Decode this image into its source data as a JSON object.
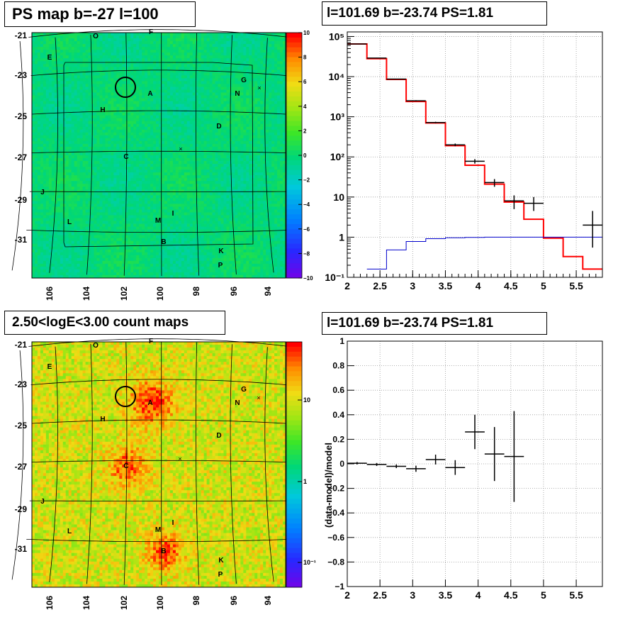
{
  "chart_data": [
    {
      "id": "ps_map",
      "type": "heatmap",
      "title": "PS map b=-27 l=100",
      "x_ticks": [
        "106",
        "104",
        "102",
        "100",
        "98",
        "96",
        "94"
      ],
      "y_ticks": [
        "-21",
        "-23",
        "-25",
        "-27",
        "-29",
        "-31"
      ],
      "colorbar_ticks": [
        "10",
        "8",
        "6",
        "4",
        "2",
        "0",
        "−2",
        "−4",
        "−6",
        "−8",
        "−10"
      ],
      "colorbar_range": [
        -10,
        10
      ],
      "source_labels": [
        "O",
        "F",
        "E",
        "G",
        "A",
        "N",
        "H",
        "D",
        "C",
        "J",
        "I",
        "L",
        "M",
        "B",
        "K",
        "P"
      ]
    },
    {
      "id": "spectrum",
      "type": "line",
      "title": "l=101.69 b=-23.74 PS=1.81",
      "y_scale": "log",
      "xlim": [
        2,
        5.9
      ],
      "ylim": [
        0.1,
        130000
      ],
      "x_ticks": [
        "2",
        "2.5",
        "3",
        "3.5",
        "4",
        "4.5",
        "5",
        "5.5"
      ],
      "y_ticks": [
        "10⁵",
        "10⁴",
        "10³",
        "10²",
        "10",
        "1",
        "10⁻¹"
      ],
      "series": [
        {
          "style": "step",
          "color": "#ff0000",
          "edges": [
            2,
            2.3,
            2.6,
            2.9,
            3.2,
            3.5,
            3.8,
            4.1,
            4.4,
            4.7,
            5.0,
            5.3,
            5.6,
            5.9
          ],
          "values": [
            65000,
            28000,
            8500,
            2400,
            700,
            190,
            62,
            21,
            7.5,
            2.8,
            0.95,
            0.33,
            0.16
          ]
        },
        {
          "style": "step",
          "color": "#0000cc",
          "edges": [
            2.3,
            2.6,
            2.9,
            3.2,
            3.5,
            3.8,
            4.1,
            4.4,
            4.7,
            5.0,
            5.3,
            5.6,
            5.9
          ],
          "values": [
            0.16,
            0.48,
            0.78,
            0.92,
            0.97,
            0.99,
            1,
            1,
            1,
            1,
            1,
            1
          ]
        },
        {
          "style": "errorbars",
          "color": "#000000",
          "points": [
            {
              "x": 2.15,
              "y": 65000,
              "xerr": 0.15,
              "lo": 64000,
              "hi": 66000
            },
            {
              "x": 2.45,
              "y": 29000,
              "xerr": 0.15,
              "lo": 28500,
              "hi": 29500
            },
            {
              "x": 2.75,
              "y": 8700,
              "xerr": 0.15,
              "lo": 8550,
              "hi": 8850
            },
            {
              "x": 3.05,
              "y": 2500,
              "xerr": 0.15,
              "lo": 2420,
              "hi": 2580
            },
            {
              "x": 3.35,
              "y": 720,
              "xerr": 0.15,
              "lo": 690,
              "hi": 750
            },
            {
              "x": 3.65,
              "y": 200,
              "xerr": 0.15,
              "lo": 185,
              "hi": 215
            },
            {
              "x": 3.95,
              "y": 78,
              "xerr": 0.15,
              "lo": 68,
              "hi": 88
            },
            {
              "x": 4.25,
              "y": 23,
              "xerr": 0.15,
              "lo": 18,
              "hi": 28
            },
            {
              "x": 4.55,
              "y": 8,
              "xerr": 0.15,
              "lo": 5,
              "hi": 11
            },
            {
              "x": 4.85,
              "y": 7,
              "xerr": 0.15,
              "lo": 4.5,
              "hi": 10
            },
            {
              "x": 5.75,
              "y": 2,
              "xerr": 0.15,
              "lo": 0.55,
              "hi": 4.5
            }
          ]
        }
      ]
    },
    {
      "id": "count_map",
      "type": "heatmap",
      "title": "2.50<logE<3.00 count maps",
      "x_ticks": [
        "106",
        "104",
        "102",
        "100",
        "98",
        "96",
        "94"
      ],
      "y_ticks": [
        "-21",
        "-23",
        "-25",
        "-27",
        "-29",
        "-31"
      ],
      "colorbar_ticks": [
        "10",
        "1",
        "10⁻¹"
      ],
      "colorbar_scale": "log",
      "source_labels": [
        "O",
        "F",
        "E",
        "G",
        "A",
        "N",
        "H",
        "D",
        "C",
        "J",
        "I",
        "L",
        "M",
        "B",
        "K",
        "P"
      ]
    },
    {
      "id": "residual",
      "type": "scatter",
      "title": "l=101.69 b=-23.74 PS=1.81",
      "ylabel": "(data-model)/model",
      "xlim": [
        2,
        5.9
      ],
      "ylim": [
        -1,
        1
      ],
      "x_ticks": [
        "2",
        "2.5",
        "3",
        "3.5",
        "4",
        "4.5",
        "5",
        "5.5"
      ],
      "y_ticks": [
        "1",
        "0.8",
        "0.6",
        "0.4",
        "0.2",
        "0",
        "−0.2",
        "−0.4",
        "−0.6",
        "−0.8",
        "−1"
      ],
      "points": [
        {
          "x": 2.15,
          "y": 0.005,
          "xerr": 0.15,
          "yerr": 0.01
        },
        {
          "x": 2.45,
          "y": -0.005,
          "xerr": 0.15,
          "yerr": 0.012
        },
        {
          "x": 2.75,
          "y": -0.02,
          "xerr": 0.15,
          "yerr": 0.015
        },
        {
          "x": 3.05,
          "y": -0.04,
          "xerr": 0.15,
          "yerr": 0.025
        },
        {
          "x": 3.35,
          "y": 0.035,
          "xerr": 0.15,
          "yerr": 0.04
        },
        {
          "x": 3.65,
          "y": -0.03,
          "xerr": 0.15,
          "yerr": 0.06
        },
        {
          "x": 3.95,
          "y": 0.26,
          "xerr": 0.15,
          "yerr": 0.14
        },
        {
          "x": 4.25,
          "y": 0.08,
          "xerr": 0.15,
          "yerr": 0.22
        },
        {
          "x": 4.55,
          "y": 0.06,
          "xerr": 0.15,
          "yerr": 0.37
        }
      ]
    }
  ]
}
